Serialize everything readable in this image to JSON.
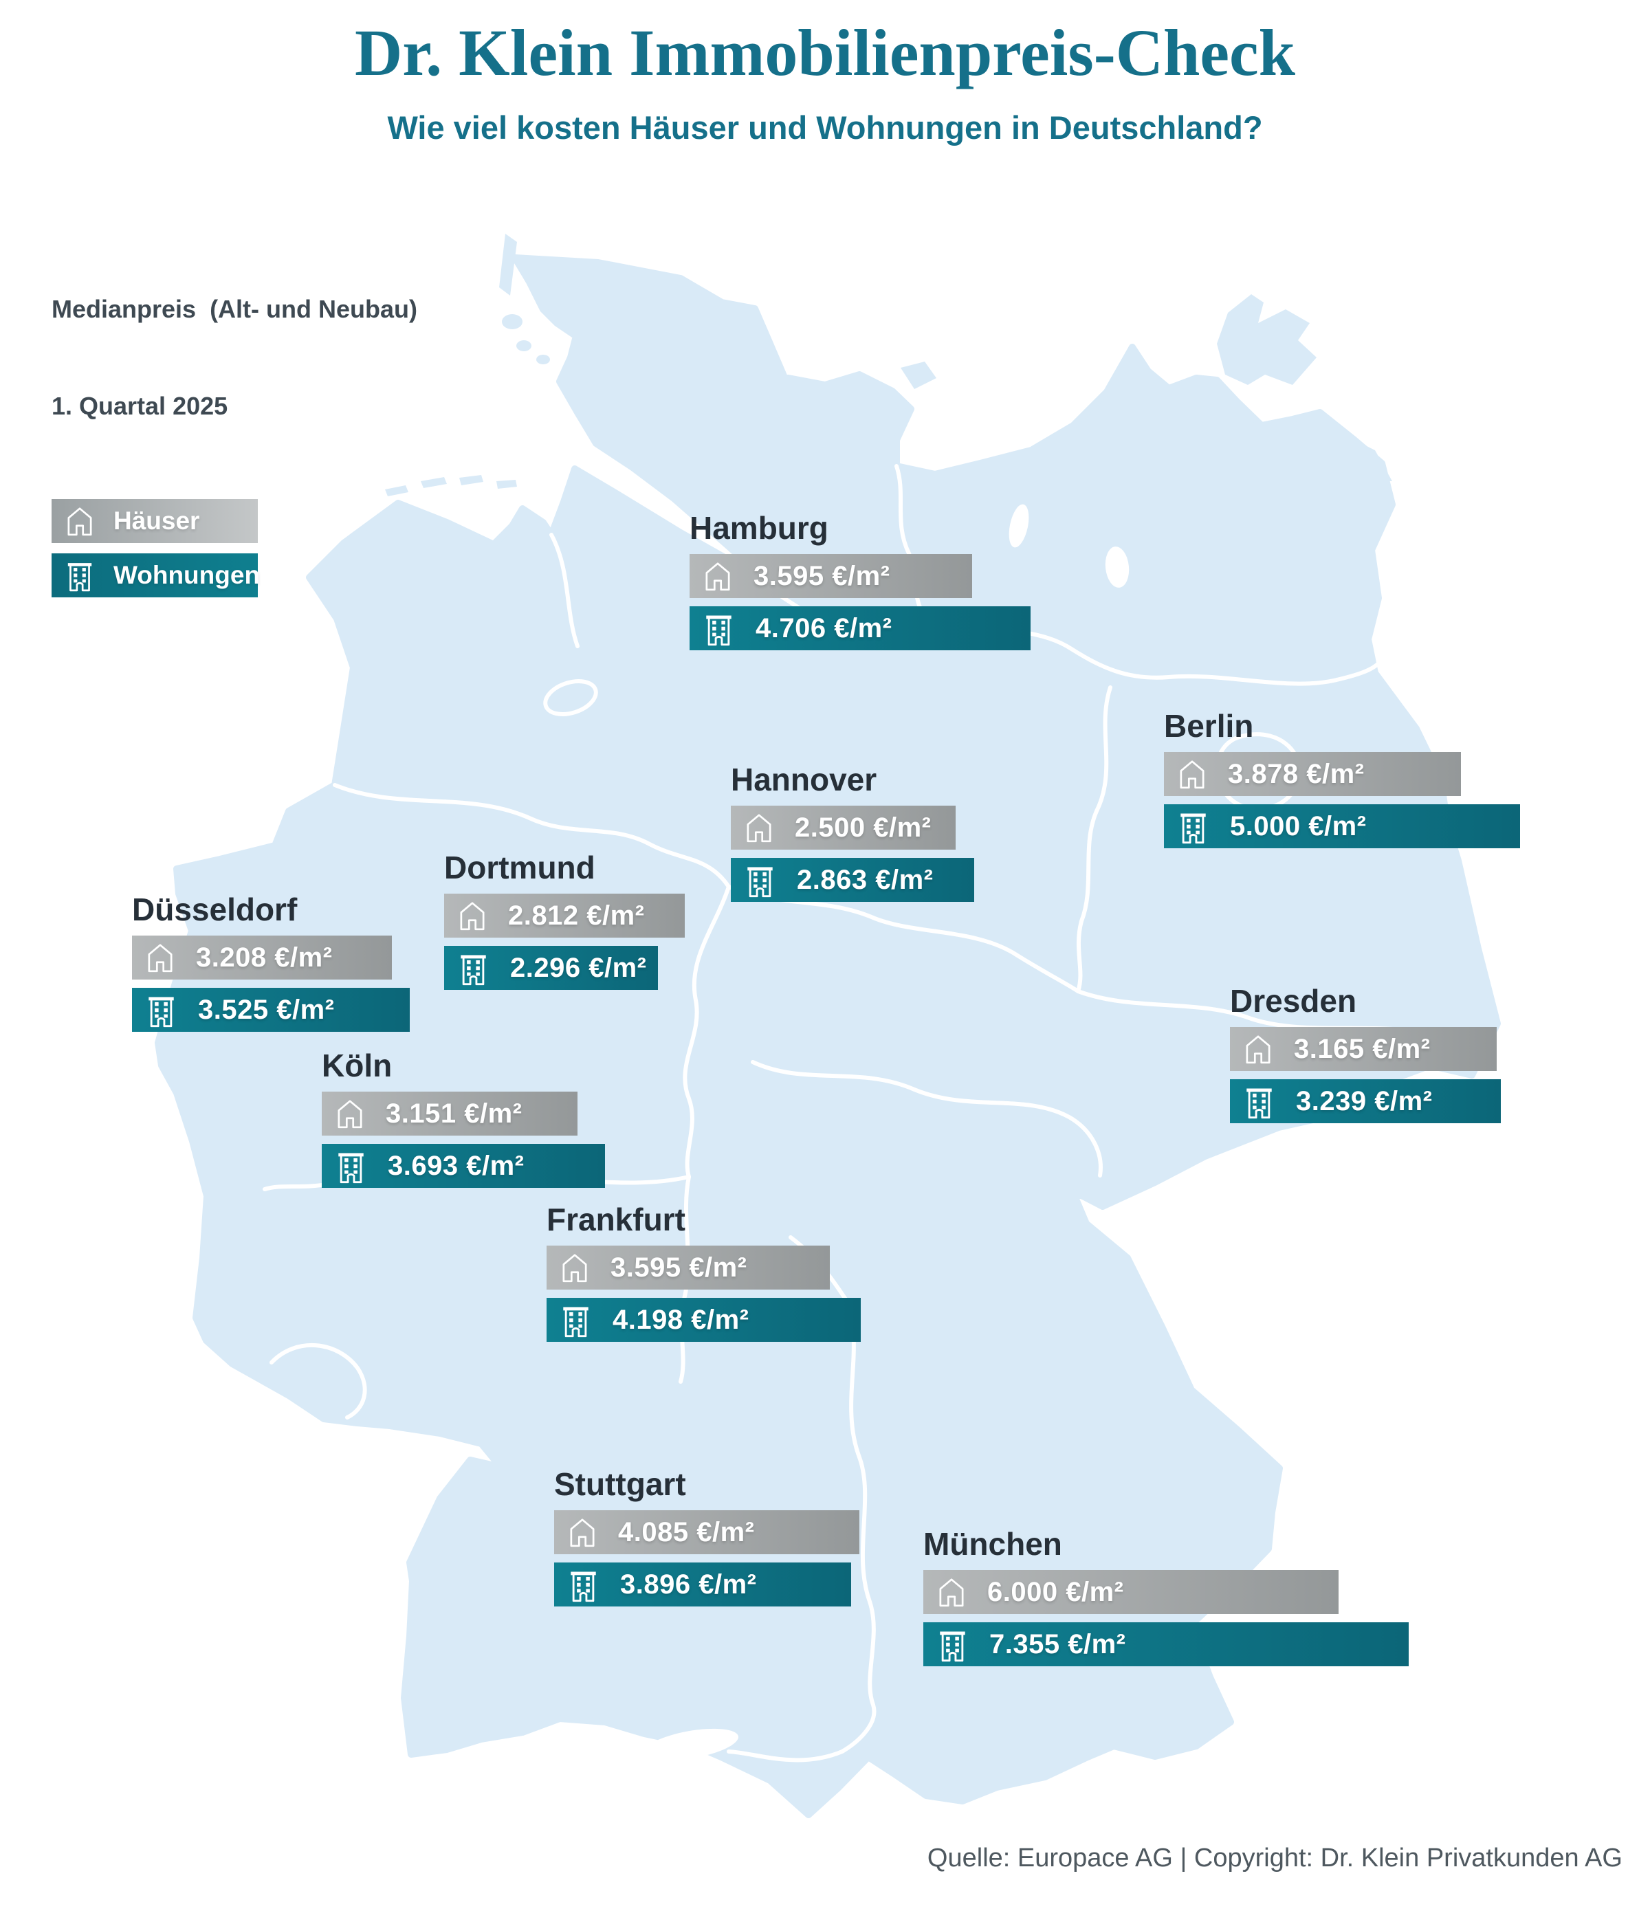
{
  "header": {
    "title": "Dr. Klein Immobilienpreis-Check",
    "subtitle": "Wie viel kosten Häuser und Wohnungen in Deutschland?"
  },
  "legend": {
    "title_line1": "Medianpreis  (Alt- und Neubau)",
    "title_line2": "1. Quartal 2025",
    "series": [
      {
        "label": "Häuser",
        "icon": "house-icon",
        "color": "#989c9d"
      },
      {
        "label": "Wohnungen",
        "icon": "building-icon",
        "color": "#0d7386"
      }
    ]
  },
  "footer": {
    "credit": "Quelle: Europace AG | Copyright: Dr. Klein Privatkunden AG"
  },
  "colors": {
    "title_teal": "#15708a",
    "bar_teal": "#0d6e80",
    "bar_gray": "#9c9fa0",
    "map_fill": "#d9eaf7",
    "map_border": "#ffffff",
    "label_dark": "#262f38",
    "footer_gray": "#4e585f"
  },
  "chart_data": {
    "type": "bar",
    "unit": "€/m²",
    "metric": "Medianpreis (Alt- und Neubau)",
    "period": "1. Quartal 2025",
    "series": [
      "Häuser",
      "Wohnungen"
    ],
    "cities": [
      {
        "name": "Hamburg",
        "haeuser": 3595,
        "wohnungen": 4706,
        "haeuser_label": "3.595 €/m²",
        "wohnungen_label": "4.706 €/m²"
      },
      {
        "name": "Berlin",
        "haeuser": 3878,
        "wohnungen": 5000,
        "haeuser_label": "3.878 €/m²",
        "wohnungen_label": "5.000 €/m²"
      },
      {
        "name": "Hannover",
        "haeuser": 2500,
        "wohnungen": 2863,
        "haeuser_label": "2.500 €/m²",
        "wohnungen_label": "2.863 €/m²"
      },
      {
        "name": "Dortmund",
        "haeuser": 2812,
        "wohnungen": 2296,
        "haeuser_label": "2.812 €/m²",
        "wohnungen_label": "2.296 €/m²"
      },
      {
        "name": "Düsseldorf",
        "haeuser": 3208,
        "wohnungen": 3525,
        "haeuser_label": "3.208 €/m²",
        "wohnungen_label": "3.525 €/m²"
      },
      {
        "name": "Köln",
        "haeuser": 3151,
        "wohnungen": 3693,
        "haeuser_label": "3.151 €/m²",
        "wohnungen_label": "3.693 €/m²"
      },
      {
        "name": "Dresden",
        "haeuser": 3165,
        "wohnungen": 3239,
        "haeuser_label": "3.165 €/m²",
        "wohnungen_label": "3.239 €/m²"
      },
      {
        "name": "Frankfurt",
        "haeuser": 3595,
        "wohnungen": 4198,
        "haeuser_label": "3.595 €/m²",
        "wohnungen_label": "4.198 €/m²"
      },
      {
        "name": "Stuttgart",
        "haeuser": 4085,
        "wohnungen": 3896,
        "haeuser_label": "4.085 €/m²",
        "wohnungen_label": "3.896 €/m²"
      },
      {
        "name": "München",
        "haeuser": 6000,
        "wohnungen": 7355,
        "haeuser_label": "6.000 €/m²",
        "wohnungen_label": "7.355 €/m²"
      }
    ]
  }
}
